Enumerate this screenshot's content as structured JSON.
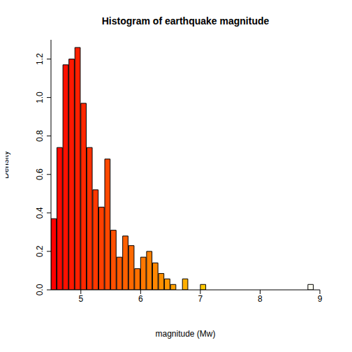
{
  "chart_data": {
    "type": "histogram",
    "title": "Histogram of earthquake magnitude",
    "xlabel": "magnitude (Mw)",
    "ylabel": "Density",
    "bins": [
      4.5,
      4.6,
      4.7,
      4.8,
      4.9,
      5.0,
      5.1,
      5.2,
      5.3,
      5.4,
      5.5,
      5.6,
      5.7,
      5.8,
      5.9,
      6.0,
      6.1,
      6.2,
      6.3,
      6.4,
      6.5,
      6.6,
      6.7,
      6.8,
      6.9,
      7.0,
      7.1,
      7.2,
      7.3,
      7.4,
      7.5,
      7.6,
      7.7,
      7.8,
      7.9,
      8.0,
      8.1,
      8.2,
      8.3,
      8.4,
      8.5,
      8.6,
      8.7,
      8.8,
      8.9
    ],
    "values": [
      0.37,
      0.74,
      1.17,
      1.2,
      1.26,
      0.97,
      0.74,
      0.52,
      0.43,
      0.68,
      0.31,
      0.17,
      0.28,
      0.23,
      0.11,
      0.17,
      0.2,
      0.14,
      0.085,
      0.057,
      0.028,
      0,
      0.057,
      0,
      0,
      0.028,
      0,
      0,
      0,
      0,
      0,
      0,
      0,
      0,
      0,
      0,
      0,
      0,
      0,
      0,
      0,
      0,
      0,
      0.028
    ],
    "colors": [
      "#FF0000",
      "#FF0800",
      "#FF1000",
      "#FF1800",
      "#FF2000",
      "#FF2800",
      "#FF3000",
      "#FF3800",
      "#FF4000",
      "#FF4800",
      "#FF5000",
      "#FF5800",
      "#FF6000",
      "#FF6800",
      "#FF7000",
      "#FF7800",
      "#FF8000",
      "#FF8700",
      "#FF8F00",
      "#FF9700",
      "#FF9F00",
      "#FFA700",
      "#FFAF00",
      "#FFB700",
      "#FFBF00",
      "#FFC700",
      "#FFCF00",
      "#FFD700",
      "#FFDF00",
      "#FFE700",
      "#FFEF00",
      "#FFF700",
      "#FFFF00",
      "#FFFF0C",
      "#FFFF23",
      "#FFFF3A",
      "#FFFF51",
      "#FFFF68",
      "#FFFF80",
      "#FFFF97",
      "#FFFFAE",
      "#FFFFC5",
      "#FFFFDC",
      "#FFFFF3"
    ],
    "xlim": [
      4.5,
      9
    ],
    "xticks": [
      5,
      6,
      7,
      8,
      9
    ],
    "ylim": [
      0,
      1.3
    ],
    "yticks": [
      {
        "value": 0,
        "label": "0.0"
      },
      0.2,
      0.4,
      0.6,
      0.8,
      {
        "value": 1,
        "label": "1.0"
      },
      1.2
    ]
  }
}
